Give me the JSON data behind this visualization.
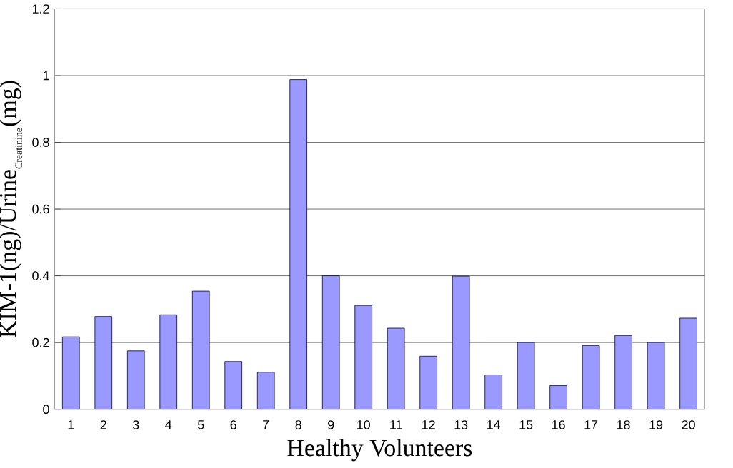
{
  "chart_data": {
    "type": "bar",
    "xlabel": "Healthy Volunteers",
    "ylabel": "\\mbox{KIM-1(ng)/Urine}_{\\mbox{\\scriptsize Creatinine}}\\mbox{(mg)}",
    "categories": [
      "1",
      "2",
      "3",
      "4",
      "5",
      "6",
      "7",
      "8",
      "9",
      "10",
      "11",
      "12",
      "13",
      "14",
      "15",
      "16",
      "17",
      "18",
      "19",
      "20"
    ],
    "values": [
      0.217,
      0.278,
      0.175,
      0.283,
      0.354,
      0.143,
      0.111,
      0.988,
      0.4,
      0.311,
      0.243,
      0.159,
      0.399,
      0.103,
      0.2,
      0.071,
      0.191,
      0.221,
      0.2,
      0.273
    ],
    "color": "#9999ff",
    "ylim": [
      0,
      1.2
    ],
    "yticks": [
      0,
      0.2,
      0.4,
      0.6,
      0.8,
      1,
      1.2
    ],
    "grid": "y"
  }
}
